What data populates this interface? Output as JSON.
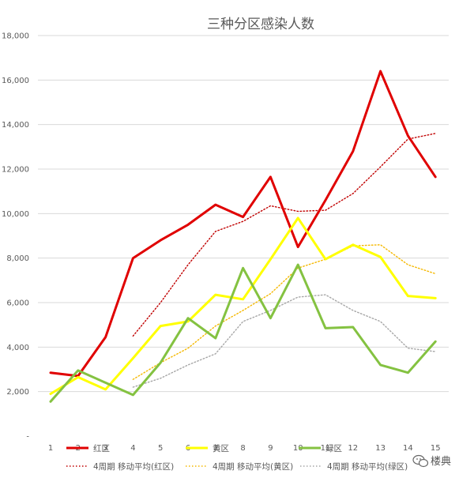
{
  "chart_data": {
    "type": "line",
    "title": "三种分区感染人数",
    "xlabel": "",
    "ylabel": "",
    "categories": [
      "1",
      "2",
      "3",
      "4",
      "5",
      "6",
      "7",
      "8",
      "9",
      "10",
      "11",
      "12",
      "13",
      "14",
      "15"
    ],
    "ylim": [
      0,
      18000
    ],
    "yticks": [
      0,
      2000,
      4000,
      6000,
      8000,
      10000,
      12000,
      14000,
      16000,
      18000
    ],
    "ytick_labels": [
      "-",
      "2,000",
      "4,000",
      "6,000",
      "8,000",
      "10,000",
      "12,000",
      "14,000",
      "16,000",
      "18,000"
    ],
    "grid": true,
    "legend_position": "bottom",
    "series": [
      {
        "name": "红区",
        "color": "#e00000",
        "style": "solid",
        "values": [
          2850,
          2700,
          4450,
          8000,
          8800,
          9500,
          10400,
          9850,
          11650,
          8500,
          10600,
          12800,
          16400,
          13500,
          11650
        ]
      },
      {
        "name": "黄区",
        "color": "#ffff00",
        "style": "solid",
        "values": [
          1900,
          2650,
          2100,
          3500,
          4950,
          5150,
          6350,
          6150,
          7950,
          9800,
          7950,
          8600,
          8050,
          6300,
          6200
        ]
      },
      {
        "name": "绿区",
        "color": "#84c241",
        "style": "solid",
        "values": [
          1550,
          2950,
          2400,
          1850,
          3300,
          5300,
          4400,
          7550,
          5300,
          7700,
          4850,
          4900,
          3200,
          2850,
          4250
        ]
      },
      {
        "name": "4周期 移动平均(红区)",
        "color": "#c00000",
        "style": "dotted",
        "values": [
          null,
          null,
          null,
          4500,
          6000,
          7700,
          9200,
          9650,
          10350,
          10100,
          10150,
          10900,
          12100,
          13350,
          13600
        ]
      },
      {
        "name": "4周期 移动平均(黄区)",
        "color": "#f5b800",
        "style": "dotted",
        "values": [
          null,
          null,
          null,
          2550,
          3300,
          3950,
          4950,
          5650,
          6400,
          7550,
          7950,
          8550,
          8600,
          7700,
          7300
        ]
      },
      {
        "name": "4周期 移动平均(绿区)",
        "color": "#a6a6a6",
        "style": "dotted",
        "values": [
          null,
          null,
          null,
          2200,
          2600,
          3200,
          3700,
          5150,
          5650,
          6250,
          6350,
          5650,
          5150,
          3950,
          3800
        ]
      }
    ]
  },
  "watermark": "楼典",
  "watermark_icon": "wechat-icon"
}
